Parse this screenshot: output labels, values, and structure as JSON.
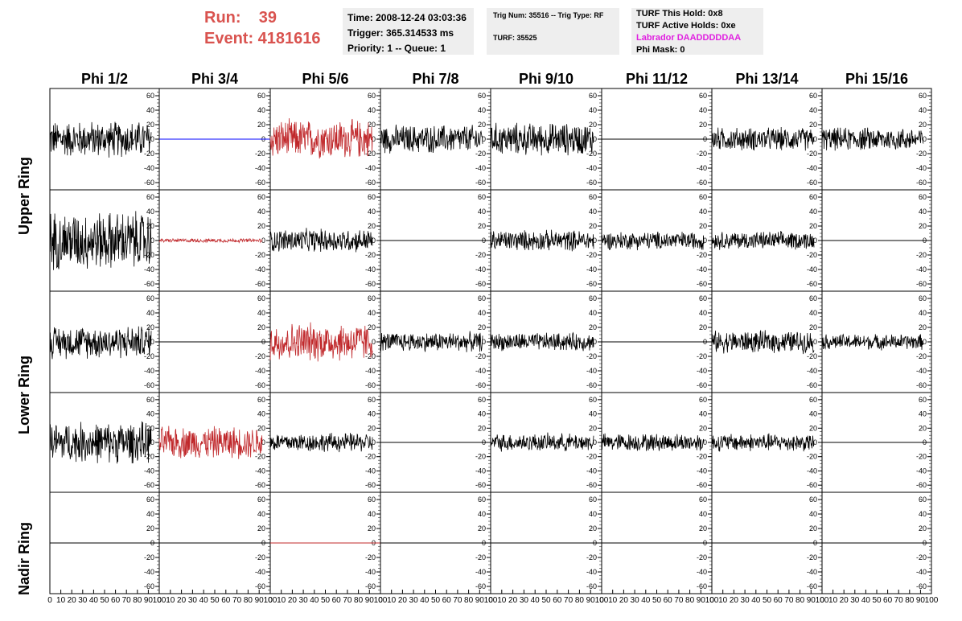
{
  "header": {
    "run_line": "Run:    39",
    "event_line": "Event: 4181616",
    "time": "Time: 2008-12-24 03:03:36",
    "trigger": "Trigger: 365.314533 ms",
    "priority": "Priority: 1 -- Queue: 1",
    "trig_num": "Trig Num: 35516 -- Trig Type: RF",
    "turf": "TURF: 35525",
    "turf_hold": "TURF This Hold: 0x8",
    "turf_active": "TURF Active Holds: 0xe",
    "labrador": "Labrador DAADDDDDAA",
    "phi_mask": "Phi Mask: 0"
  },
  "columns": [
    "Phi 1/2",
    "Phi 3/4",
    "Phi 5/6",
    "Phi 7/8",
    "Phi 9/10",
    "Phi 11/12",
    "Phi 13/14",
    "Phi 15/16"
  ],
  "rows": [
    "Upper Ring",
    "Lower Ring",
    "Nadir Ring"
  ],
  "y_ticks": [
    "60",
    "40",
    "20",
    "0",
    "-20",
    "-40",
    "-60"
  ],
  "x_ticks": [
    "0",
    "10",
    "20",
    "30",
    "40",
    "50",
    "60",
    "70",
    "80",
    "90",
    "100"
  ],
  "colors": {
    "red_text": "#d9534f",
    "waveform_black": "#000000",
    "waveform_red": "#c0282b",
    "flat_blue": "#0000ff",
    "magenta": "#e020e0"
  },
  "chart_data": {
    "type": "line",
    "xlim": [
      0,
      100
    ],
    "ylim": [
      -70,
      70
    ],
    "panels": [
      [
        "noise:28",
        "flat-blue",
        "noise-red:30",
        "noise:22",
        "noise:25",
        "flat",
        "noise:18",
        "noise:18"
      ],
      [
        "noise:45",
        "noise-red:3",
        "noise:18",
        "flat",
        "noise:16",
        "noise:14",
        "noise:14",
        "flat"
      ],
      [
        "noise:25",
        "flat",
        "noise-red:30",
        "noise:15",
        "noise:14",
        "flat",
        "noise:17",
        "noise:12"
      ],
      [
        "noise:32",
        "noise-red:25",
        "noise:15",
        "flat",
        "noise:14",
        "noise:14",
        "noise:14",
        "flat"
      ],
      [
        "flat",
        "flat",
        "flat-red",
        "flat",
        "flat",
        "flat",
        "flat",
        "flat"
      ]
    ]
  }
}
